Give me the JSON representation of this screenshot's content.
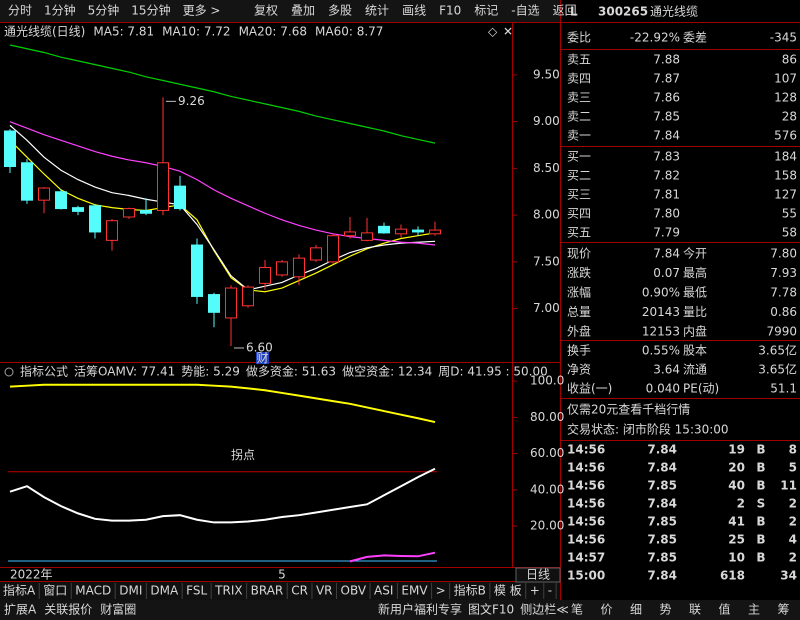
{
  "toolbar": {
    "left": [
      "分时",
      "1分钟",
      "5分钟",
      "15分钟",
      "更多 >"
    ],
    "right": [
      "复权",
      "叠加",
      "多股",
      "统计",
      "画线",
      "F10",
      "标记",
      "-自选",
      "返回"
    ]
  },
  "stock": {
    "flag": "L",
    "code": "300265",
    "name": "通光线缆"
  },
  "chart_data": [
    {
      "type": "candlestick",
      "title": "通光线缆(日线)",
      "categories": [
        "2022年",
        null,
        null,
        null,
        null,
        null,
        null,
        null,
        null,
        null,
        null,
        null,
        null,
        null,
        null,
        null,
        "5",
        null,
        null,
        null,
        null,
        null,
        null,
        null,
        null,
        null
      ],
      "open": [
        8.9,
        8.56,
        8.16,
        8.25,
        8.08,
        8.1,
        7.73,
        7.98,
        8.05,
        8.05,
        8.31,
        7.68,
        7.15,
        6.9,
        7.03,
        7.27,
        7.36,
        7.34,
        7.52,
        7.5,
        7.78,
        7.73,
        7.88,
        7.8,
        7.84,
        7.8
      ],
      "high": [
        8.92,
        8.6,
        8.3,
        8.28,
        8.1,
        8.12,
        7.96,
        8.08,
        8.18,
        9.26,
        8.42,
        7.75,
        7.17,
        7.25,
        7.25,
        7.52,
        7.52,
        7.58,
        7.68,
        7.8,
        7.98,
        7.97,
        7.92,
        7.9,
        7.88,
        7.93
      ],
      "low": [
        8.45,
        8.12,
        8.02,
        8.06,
        8.0,
        7.75,
        7.62,
        7.96,
        8.0,
        8.0,
        8.05,
        7.05,
        6.8,
        6.6,
        7.01,
        7.2,
        7.34,
        7.25,
        7.5,
        7.48,
        7.75,
        7.72,
        7.8,
        7.76,
        7.78,
        7.78
      ],
      "close": [
        8.52,
        8.16,
        8.29,
        8.07,
        8.04,
        7.82,
        7.94,
        8.07,
        8.02,
        8.56,
        8.07,
        7.13,
        6.96,
        7.22,
        7.23,
        7.44,
        7.5,
        7.54,
        7.65,
        7.78,
        7.82,
        7.81,
        7.81,
        7.85,
        7.82,
        7.84
      ],
      "up_color": "#ff3232",
      "down_color": "#54fcfc",
      "series": [
        {
          "label": "MA5: 7.81",
          "color": "#ffff00",
          "values": [
            8.8,
            8.62,
            8.44,
            8.27,
            8.18,
            8.11,
            8.08,
            8.06,
            8.05,
            8.08,
            8.11,
            7.95,
            7.62,
            7.33,
            7.2,
            7.18,
            7.22,
            7.3,
            7.38,
            7.47,
            7.56,
            7.64,
            7.7,
            7.75,
            7.78,
            7.81
          ]
        },
        {
          "label": "MA10: 7.72",
          "color": "#ffffff",
          "values": [
            8.96,
            8.8,
            8.62,
            8.48,
            8.38,
            8.3,
            8.24,
            8.21,
            8.17,
            8.14,
            8.11,
            7.9,
            7.63,
            7.35,
            7.2,
            7.24,
            7.28,
            7.36,
            7.43,
            7.52,
            7.6,
            7.65,
            7.68,
            7.7,
            7.71,
            7.72
          ]
        },
        {
          "label": "MA20: 7.68",
          "color": "#ff40ff",
          "values": [
            9.0,
            8.93,
            8.86,
            8.8,
            8.74,
            8.68,
            8.63,
            8.59,
            8.56,
            8.52,
            8.47,
            8.38,
            8.27,
            8.18,
            8.1,
            8.02,
            7.95,
            7.89,
            7.84,
            7.8,
            7.77,
            7.75,
            7.73,
            7.71,
            7.7,
            7.68
          ]
        },
        {
          "label": "MA60: 8.77",
          "color": "#00d000",
          "values": [
            9.82,
            9.78,
            9.74,
            9.69,
            9.65,
            9.61,
            9.57,
            9.53,
            9.48,
            9.44,
            9.4,
            9.36,
            9.32,
            9.27,
            9.23,
            9.19,
            9.15,
            9.11,
            9.06,
            9.02,
            8.98,
            8.94,
            8.9,
            8.85,
            8.81,
            8.77
          ]
        }
      ],
      "ylim": [
        6.45,
        9.82
      ],
      "yticks": [
        {
          "value": 9.5,
          "label": "9.50"
        },
        {
          "value": 9,
          "label": "9.00"
        },
        {
          "value": 8.5,
          "label": "8.50"
        },
        {
          "value": 8,
          "label": "8.00"
        },
        {
          "value": 7.5,
          "label": "7.50"
        },
        {
          "value": 7,
          "label": "7.00"
        }
      ],
      "annotations": [
        {
          "text": "9.26",
          "value": 9.26
        },
        {
          "text": "6.60",
          "value": 6.6
        }
      ],
      "low_tag": "财",
      "period": "日线"
    },
    {
      "type": "line",
      "title": "指标公式",
      "legend": [
        {
          "text": "活筹OAMV: 77.41",
          "color": "#ffff00"
        },
        {
          "text": "势能: 5.29",
          "color": "#ff40ff"
        },
        {
          "text": "做多资金: 51.63",
          "color": "#ffffff"
        },
        {
          "text": "做空资金: 12.34",
          "color": "#e0e0e0"
        },
        {
          "text": "周D: 41.95 : 50.00",
          "color": "#ff5050"
        }
      ],
      "series": [
        {
          "color": "#ffff00",
          "values": [
            97,
            97.5,
            98,
            98,
            98,
            98,
            98,
            98,
            98,
            98,
            98,
            98,
            97.5,
            97,
            96,
            95,
            93.5,
            92,
            90.5,
            89,
            87.5,
            85.5,
            83.5,
            81.5,
            79.5,
            77.41
          ]
        },
        {
          "color": "#ffffff",
          "values": [
            39,
            42,
            36,
            31,
            27,
            24,
            23,
            23,
            23.5,
            25.5,
            26,
            23.5,
            22,
            22,
            22.5,
            23.5,
            25,
            26,
            27.5,
            29,
            30.5,
            32,
            37,
            42,
            47,
            51.63
          ]
        },
        {
          "color": "#ff40ff",
          "values": [
            null,
            null,
            null,
            null,
            null,
            null,
            null,
            null,
            null,
            null,
            null,
            null,
            null,
            null,
            null,
            null,
            null,
            null,
            null,
            null,
            0.5,
            3,
            3.8,
            3.5,
            3.3,
            5.29
          ]
        }
      ],
      "reference": {
        "value": 50,
        "label": "拐点",
        "color": "#c00000"
      },
      "ylim": [
        -1.5,
        103.4
      ],
      "yticks": [
        {
          "value": 100,
          "label": "100.0"
        },
        {
          "value": 80,
          "label": "80.00"
        },
        {
          "value": 60,
          "label": "60.00"
        },
        {
          "value": 40,
          "label": "40.00"
        },
        {
          "value": 20,
          "label": "20.00"
        }
      ]
    }
  ],
  "order_book": {
    "ratio": [
      "委比",
      "-22.92%",
      "委差",
      "-345"
    ],
    "asks": [
      [
        "卖五",
        "7.88",
        "86"
      ],
      [
        "卖四",
        "7.87",
        "107"
      ],
      [
        "卖三",
        "7.86",
        "128"
      ],
      [
        "卖二",
        "7.85",
        "28"
      ],
      [
        "卖一",
        "7.84",
        "576"
      ]
    ],
    "bids": [
      [
        "买一",
        "7.83",
        "184"
      ],
      [
        "买二",
        "7.82",
        "158"
      ],
      [
        "买三",
        "7.81",
        "127"
      ],
      [
        "买四",
        "7.80",
        "55"
      ],
      [
        "买五",
        "7.79",
        "58"
      ]
    ]
  },
  "quote": [
    [
      "现价",
      "7.84",
      "今开",
      "7.80"
    ],
    [
      "涨跌",
      "0.07",
      "最高",
      "7.93"
    ],
    [
      "涨幅",
      "0.90%",
      "最低",
      "7.78"
    ],
    [
      "总量",
      "20143",
      "量比",
      "0.86"
    ],
    [
      "外盘",
      "12153",
      "内盘",
      "7990"
    ]
  ],
  "fundamentals": [
    [
      "换手",
      "0.55%",
      "股本",
      "3.65亿"
    ],
    [
      "净资",
      "3.64",
      "流通",
      "3.65亿"
    ],
    [
      "收益(一)",
      "0.040",
      "PE(动)",
      "51.1"
    ]
  ],
  "promo": "仅需20元查看千档行情",
  "trade_status": "交易状态: 闭市阶段 15:30:00",
  "ticks": [
    {
      "time": "14:56",
      "price": "7.84",
      "volume": "19",
      "side": "B",
      "count": "8"
    },
    {
      "time": "14:56",
      "price": "7.84",
      "volume": "20",
      "side": "B",
      "count": "5"
    },
    {
      "time": "14:56",
      "price": "7.85",
      "volume": "40",
      "side": "B",
      "count": "11"
    },
    {
      "time": "14:56",
      "price": "7.84",
      "volume": "2",
      "side": "S",
      "count": "2"
    },
    {
      "time": "14:56",
      "price": "7.85",
      "volume": "41",
      "side": "B",
      "count": "2"
    },
    {
      "time": "14:56",
      "price": "7.85",
      "volume": "25",
      "side": "B",
      "count": "4"
    },
    {
      "time": "14:57",
      "price": "7.85",
      "volume": "10",
      "side": "B",
      "count": "2"
    },
    {
      "time": "15:00",
      "price": "7.84",
      "volume": "618",
      "count": "34"
    }
  ],
  "indicator_tabs": [
    "指标A",
    "窗口",
    "MACD",
    "DMI",
    "DMA",
    "FSL",
    "TRIX",
    "BRAR",
    "CR",
    "VR",
    "OBV",
    "ASI",
    "EMV",
    ">",
    "指标B",
    "模 板",
    "+",
    "-"
  ],
  "status_left": [
    "扩展A",
    "关联报价",
    "财富圈"
  ],
  "status_right": [
    "新用户福利专享",
    "图文F10",
    "侧边栏≪"
  ],
  "side_tabs": [
    "笔",
    "价",
    "细",
    "势",
    "联",
    "值",
    "主",
    "筹"
  ]
}
